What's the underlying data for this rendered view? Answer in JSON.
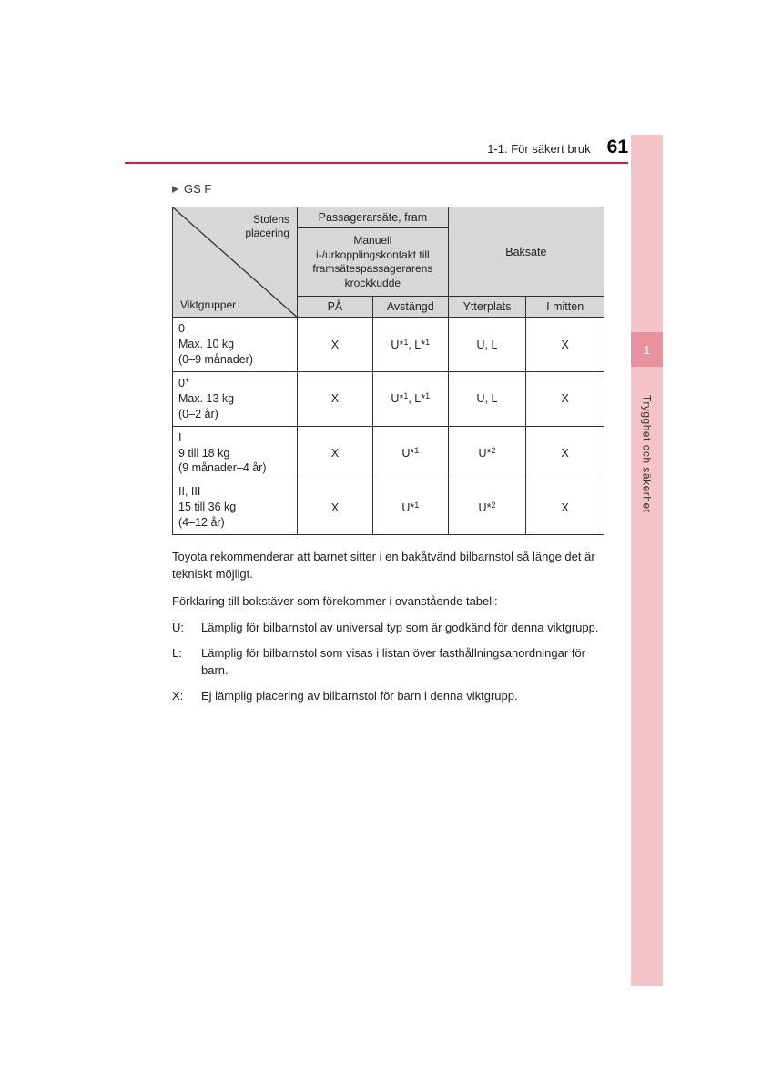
{
  "header": {
    "section": "1-1. För säkert bruk",
    "page": "61"
  },
  "sidebar": {
    "chapter_number": "1",
    "chapter_title": "Trygghet och säkerhet"
  },
  "model_label": "GS F",
  "table": {
    "diag": {
      "top": "Stolens\nplacering",
      "bottom": "Viktgrupper"
    },
    "front_header": "Passagerarsäte, fram",
    "front_sub": "Manuell i-/urkopplingskontakt till framsätespassagerarens krockkudde",
    "back_header": "Baksäte",
    "cols": {
      "c1": "PÅ",
      "c2": "Avstängd",
      "c3": "Ytterplats",
      "c4": "I mitten"
    },
    "rows": [
      {
        "label_lines": [
          "0",
          "Max. 10 kg",
          "(0–9 månader)"
        ],
        "v": [
          "X",
          "U*1, L*1",
          "U, L",
          "X"
        ]
      },
      {
        "label_lines": [
          "0+",
          "Max. 13 kg",
          "(0–2 år)"
        ],
        "v": [
          "X",
          "U*1, L*1",
          "U, L",
          "X"
        ]
      },
      {
        "label_lines": [
          "I",
          "9 till 18 kg",
          "(9 månader–4 år)"
        ],
        "v": [
          "X",
          "U*1",
          "U*2",
          "X"
        ]
      },
      {
        "label_lines": [
          "II, III",
          "15 till 36 kg",
          "(4–12 år)"
        ],
        "v": [
          "X",
          "U*1",
          "U*2",
          "X"
        ]
      }
    ]
  },
  "para1": "Toyota rekommenderar att barnet sitter i en bakåtvänd bilbarnstol så länge det är tekniskt möjligt.",
  "para2": "Förklaring till bokstäver som förekommer i ovanstående tabell:",
  "defs": [
    {
      "k": "U:",
      "d": "Lämplig för bilbarnstol av universal typ som är godkänd för denna viktgrupp."
    },
    {
      "k": "L:",
      "d": "Lämplig för bilbarnstol som visas i listan över fasthållningsanordningar för barn."
    },
    {
      "k": "X:",
      "d": "Ej lämplig placering av bilbarnstol för barn i denna viktgrupp."
    }
  ],
  "colors": {
    "tab_light": "#f6c3c9",
    "tab_dark": "#e9929e",
    "rule": "#cf1f3d",
    "th_bg": "#d7d7d7",
    "border": "#303030"
  }
}
